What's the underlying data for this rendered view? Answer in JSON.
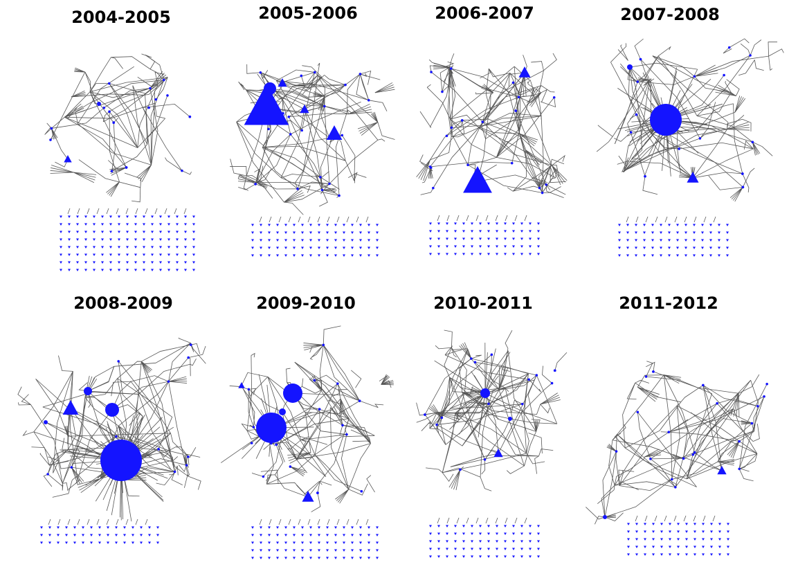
{
  "panels": [
    {
      "title": "2004-2005"
    },
    {
      "title": "2005-2006"
    },
    {
      "title": "2006-2007"
    },
    {
      "title": "2007-2008"
    },
    {
      "title": "2008-2009"
    },
    {
      "title": "2009-2010"
    },
    {
      "title": "2010-2011"
    },
    {
      "title": "2011-2012"
    }
  ]
}
